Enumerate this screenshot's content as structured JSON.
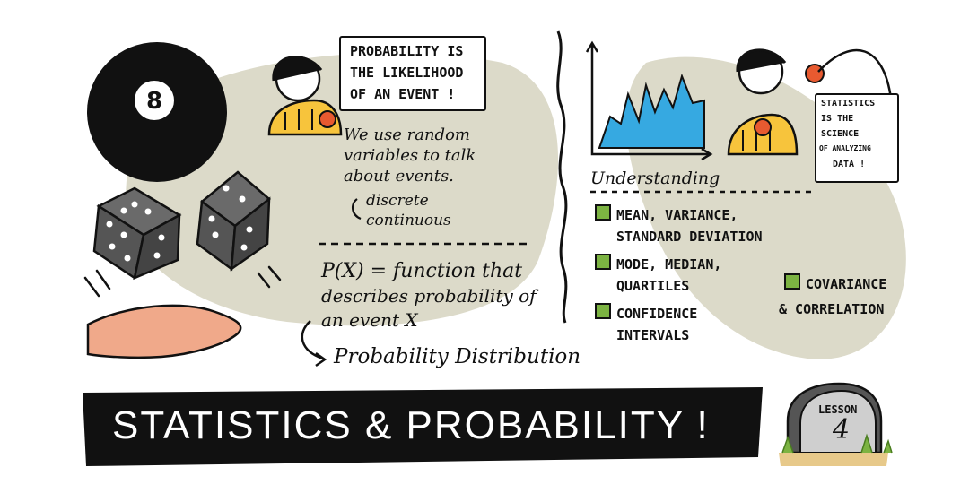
{
  "title": "STATISTICS & PROBABILITY !",
  "lesson": {
    "label": "LESSON",
    "number": "4"
  },
  "eight_ball": {
    "number": "8"
  },
  "probability": {
    "bubble": [
      "PROBABILITY IS",
      "THE LIKELIHOOD",
      "OF AN EVENT !"
    ],
    "random_vars": [
      "We use random",
      "variables to talk",
      "about events."
    ],
    "types": [
      "discrete",
      "continuous"
    ],
    "px_lines": [
      "P(X) = function that",
      "describes probability of",
      "an event X"
    ],
    "distribution": "Probability Distribution"
  },
  "statistics": {
    "bubble": [
      "STATISTICS",
      "IS THE",
      "SCIENCE",
      "OF ANALYZING",
      "DATA !"
    ],
    "understanding": "Understanding",
    "topics": [
      {
        "lines": [
          "MEAN, VARIANCE,",
          "STANDARD DEVIATION"
        ]
      },
      {
        "lines": [
          "MODE, MEDIAN,",
          "QUARTILES"
        ]
      },
      {
        "lines": [
          "CONFIDENCE",
          "INTERVALS"
        ]
      },
      {
        "lines": [
          "COVARIANCE",
          "& CORRELATION"
        ]
      }
    ]
  },
  "colors": {
    "blob": "#dcdac9",
    "banner": "#111111",
    "shirt": "#f7c43c",
    "hand": "#f0a98a",
    "chart": "#36a9e1",
    "check": "#7cb342",
    "dice": "#555555"
  }
}
